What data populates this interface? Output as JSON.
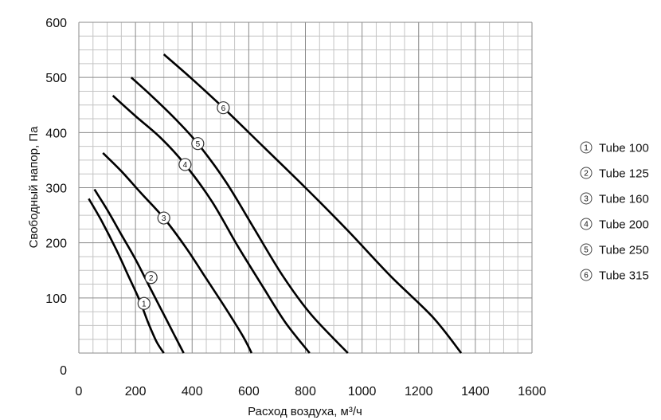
{
  "chart_data": {
    "type": "line",
    "title": "",
    "xlabel": "Расход  воздуха, м³/ч",
    "ylabel": "Свободный напор, Па",
    "xlim": [
      0,
      1600
    ],
    "ylim": [
      0,
      600
    ],
    "x_ticks": [
      "0",
      "200",
      "400",
      "600",
      "800",
      "1000",
      "1200",
      "1400",
      "1600"
    ],
    "y_ticks": [
      "0",
      "100",
      "200",
      "300",
      "400",
      "500",
      "600"
    ],
    "y_ticks_values": [
      0,
      100,
      200,
      300,
      400,
      500,
      600
    ],
    "x_ticks_values": [
      0,
      200,
      400,
      600,
      800,
      1000,
      1200,
      1400,
      1600
    ],
    "grid": true,
    "legend_position": "right",
    "series": [
      {
        "name": "Tube 100",
        "marker_label": "1",
        "marker_at": [
          230,
          90
        ],
        "points": [
          [
            35,
            280
          ],
          [
            80,
            240
          ],
          [
            130,
            190
          ],
          [
            175,
            140
          ],
          [
            215,
            95
          ],
          [
            245,
            55
          ],
          [
            275,
            20
          ],
          [
            300,
            0
          ]
        ]
      },
      {
        "name": "Tube 125",
        "marker_label": "2",
        "marker_at": [
          255,
          137
        ],
        "points": [
          [
            55,
            297
          ],
          [
            100,
            260
          ],
          [
            150,
            215
          ],
          [
            200,
            170
          ],
          [
            245,
            125
          ],
          [
            290,
            80
          ],
          [
            335,
            35
          ],
          [
            370,
            0
          ]
        ]
      },
      {
        "name": "Tube 160",
        "marker_label": "3",
        "marker_at": [
          300,
          245
        ],
        "points": [
          [
            85,
            363
          ],
          [
            150,
            330
          ],
          [
            220,
            290
          ],
          [
            300,
            245
          ],
          [
            380,
            190
          ],
          [
            450,
            135
          ],
          [
            520,
            80
          ],
          [
            580,
            30
          ],
          [
            610,
            0
          ]
        ]
      },
      {
        "name": "Tube 200",
        "marker_label": "4",
        "marker_at": [
          375,
          342
        ],
        "points": [
          [
            120,
            467
          ],
          [
            200,
            430
          ],
          [
            290,
            390
          ],
          [
            375,
            342
          ],
          [
            470,
            275
          ],
          [
            560,
            195
          ],
          [
            650,
            120
          ],
          [
            730,
            55
          ],
          [
            815,
            0
          ]
        ]
      },
      {
        "name": "Tube 250",
        "marker_label": "5",
        "marker_at": [
          420,
          380
        ],
        "points": [
          [
            185,
            500
          ],
          [
            260,
            465
          ],
          [
            340,
            425
          ],
          [
            420,
            380
          ],
          [
            520,
            310
          ],
          [
            620,
            225
          ],
          [
            720,
            140
          ],
          [
            820,
            70
          ],
          [
            950,
            0
          ]
        ]
      },
      {
        "name": "Tube 315",
        "marker_label": "6",
        "marker_at": [
          510,
          445
        ],
        "points": [
          [
            300,
            542
          ],
          [
            400,
            497
          ],
          [
            510,
            445
          ],
          [
            650,
            375
          ],
          [
            800,
            300
          ],
          [
            950,
            222
          ],
          [
            1100,
            140
          ],
          [
            1250,
            65
          ],
          [
            1350,
            0
          ]
        ]
      }
    ]
  }
}
